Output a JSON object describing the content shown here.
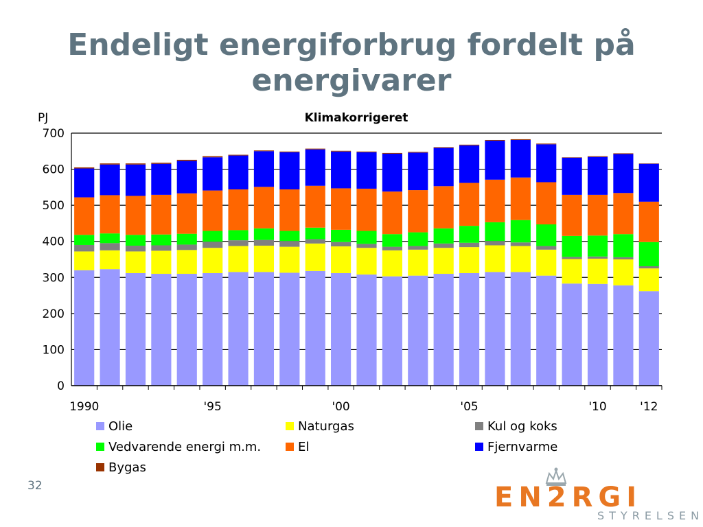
{
  "slide": {
    "title": "Endeligt energiforbrug fordelt på energivarer",
    "number": "32"
  },
  "logo": {
    "word": "EN2RGI",
    "sub": "STYRELSEN"
  },
  "chart_data": {
    "type": "bar",
    "stacked": true,
    "title": "Klimakorrigeret",
    "ylabel": "PJ",
    "ylim": [
      0,
      700
    ],
    "yticks": [
      0,
      100,
      200,
      300,
      400,
      500,
      600,
      700
    ],
    "grid": true,
    "legend_position": "bottom",
    "categories": [
      "1990",
      "1991",
      "1992",
      "1993",
      "1994",
      "1995",
      "1996",
      "1997",
      "1998",
      "1999",
      "2000",
      "2001",
      "2002",
      "2003",
      "2004",
      "2005",
      "2006",
      "2007",
      "2008",
      "2009",
      "2010",
      "2011",
      "2012"
    ],
    "xtick_labels": [
      {
        "index": 0,
        "label": "1990"
      },
      {
        "index": 5,
        "label": "'95"
      },
      {
        "index": 10,
        "label": "'00"
      },
      {
        "index": 15,
        "label": "'05"
      },
      {
        "index": 20,
        "label": "'10"
      },
      {
        "index": 22,
        "label": "'12"
      }
    ],
    "series": [
      {
        "name": "Olie",
        "color": "#9999ff",
        "values": [
          320,
          323,
          312,
          310,
          310,
          312,
          315,
          315,
          313,
          318,
          312,
          308,
          303,
          305,
          310,
          312,
          315,
          315,
          305,
          283,
          282,
          278,
          262
        ]
      },
      {
        "name": "Naturgas",
        "color": "#ffff00",
        "values": [
          52,
          52,
          60,
          64,
          66,
          70,
          72,
          73,
          72,
          76,
          74,
          74,
          72,
          72,
          72,
          72,
          74,
          72,
          72,
          68,
          70,
          72,
          63
        ]
      },
      {
        "name": "Kul og koks",
        "color": "#808080",
        "values": [
          18,
          20,
          16,
          15,
          15,
          17,
          16,
          16,
          16,
          12,
          12,
          11,
          10,
          10,
          12,
          12,
          12,
          10,
          10,
          6,
          6,
          6,
          6
        ]
      },
      {
        "name": "Vedvarende energi m.m.",
        "color": "#00ff00",
        "values": [
          28,
          27,
          30,
          30,
          30,
          30,
          28,
          32,
          28,
          32,
          34,
          36,
          35,
          38,
          42,
          47,
          52,
          62,
          60,
          58,
          58,
          64,
          67
        ]
      },
      {
        "name": "El",
        "color": "#ff6600",
        "values": [
          104,
          106,
          108,
          110,
          112,
          112,
          113,
          115,
          115,
          116,
          115,
          117,
          118,
          117,
          117,
          119,
          118,
          118,
          117,
          114,
          113,
          114,
          112
        ]
      },
      {
        "name": "Fjernvarme",
        "color": "#0000ff",
        "values": [
          80,
          85,
          87,
          86,
          90,
          92,
          94,
          99,
          103,
          101,
          102,
          101,
          105,
          104,
          106,
          104,
          108,
          104,
          105,
          103,
          105,
          108,
          105
        ]
      },
      {
        "name": "Bygas",
        "color": "#993300",
        "values": [
          3,
          3,
          3,
          3,
          3,
          3,
          2,
          2,
          2,
          2,
          2,
          2,
          2,
          2,
          2,
          2,
          2,
          2,
          2,
          1,
          2,
          2,
          1
        ]
      }
    ]
  }
}
